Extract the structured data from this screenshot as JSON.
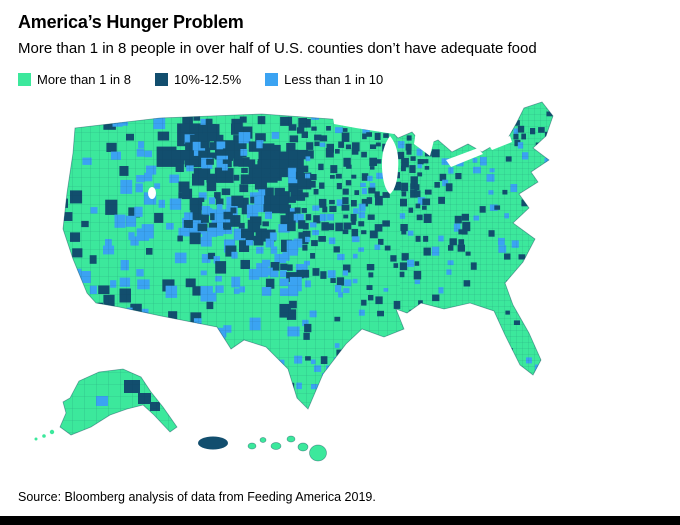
{
  "header": {
    "title": "America’s Hunger Problem",
    "subtitle": "More than 1 in 8 people in over half of U.S. counties don’t have adequate food"
  },
  "legend": {
    "items": [
      {
        "label": "More than 1 in 8",
        "color": "#3CE89C"
      },
      {
        "label": "10%-12.5%",
        "color": "#124E6E"
      },
      {
        "label": "Less than 1 in 10",
        "color": "#3BA3F2"
      }
    ]
  },
  "map": {
    "type": "county-choropleth",
    "region": "United States",
    "insets": [
      "Alaska",
      "Hawaii"
    ]
  },
  "source": "Source: Bloomberg analysis of data from Feeding America 2019."
}
